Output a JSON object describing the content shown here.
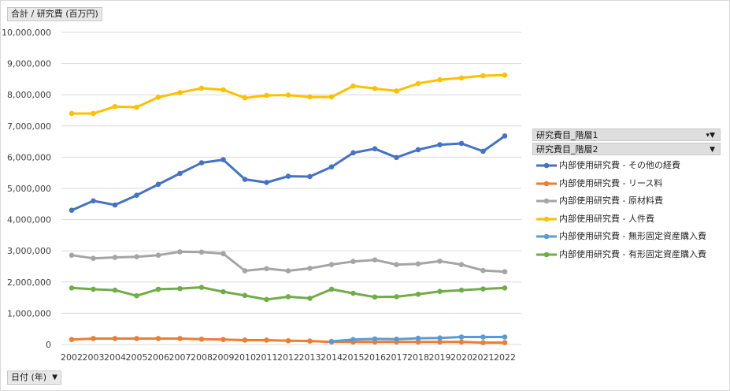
{
  "pivot": {
    "value_field": "合計 / 研究費 (百万円)",
    "axis_field": "日付 (年)",
    "legend_field_1": "研究費目_階層1",
    "legend_field_2": "研究費目_階層2"
  },
  "chart_data": {
    "type": "line",
    "title": "",
    "ylabel": "合計 / 研究費 (百万円)",
    "xlabel": "日付 (年)",
    "ylim": [
      0,
      10000000
    ],
    "yticks": [
      0,
      1000000,
      2000000,
      3000000,
      4000000,
      5000000,
      6000000,
      7000000,
      8000000,
      9000000,
      10000000
    ],
    "ytick_labels": [
      "0",
      "1,000,000",
      "2,000,000",
      "3,000,000",
      "4,000,000",
      "5,000,000",
      "6,000,000",
      "7,000,000",
      "8,000,000",
      "9,000,000",
      "10,000,000"
    ],
    "grid": true,
    "legend_position": "right",
    "categories": [
      "2002",
      "2003",
      "2004",
      "2005",
      "2006",
      "2007",
      "2008",
      "2009",
      "2010",
      "2011",
      "2012",
      "2013",
      "2014",
      "2015",
      "2016",
      "2017",
      "2018",
      "2019",
      "2020",
      "2021",
      "2022"
    ],
    "series": [
      {
        "name": "内部使用研究費 - その他の経費",
        "color": "#4472c4",
        "values": [
          4300000,
          4600000,
          4470000,
          4780000,
          5130000,
          5480000,
          5820000,
          5920000,
          5290000,
          5190000,
          5390000,
          5380000,
          5690000,
          6140000,
          6270000,
          5990000,
          6240000,
          6400000,
          6440000,
          6190000,
          6680000
        ]
      },
      {
        "name": "内部使用研究費 - リース料",
        "color": "#ed7d31",
        "values": [
          160000,
          190000,
          190000,
          190000,
          190000,
          190000,
          170000,
          160000,
          140000,
          140000,
          120000,
          110000,
          80000,
          80000,
          80000,
          80000,
          80000,
          80000,
          80000,
          60000,
          60000
        ]
      },
      {
        "name": "内部使用研究費 - 原材料費",
        "color": "#a5a5a5",
        "values": [
          2860000,
          2760000,
          2790000,
          2810000,
          2860000,
          2970000,
          2960000,
          2910000,
          2360000,
          2430000,
          2360000,
          2440000,
          2560000,
          2660000,
          2710000,
          2560000,
          2580000,
          2670000,
          2560000,
          2370000,
          2330000
        ]
      },
      {
        "name": "内部使用研究費 - 人件費",
        "color": "#ffc000",
        "values": [
          7400000,
          7400000,
          7620000,
          7600000,
          7920000,
          8070000,
          8210000,
          8160000,
          7900000,
          7980000,
          7990000,
          7930000,
          7930000,
          8280000,
          8200000,
          8120000,
          8360000,
          8480000,
          8540000,
          8610000,
          8630000
        ]
      },
      {
        "name": "内部使用研究費 - 無形固定資産購入費",
        "color": "#5b9bd5",
        "values": [
          null,
          null,
          null,
          null,
          null,
          null,
          null,
          null,
          null,
          null,
          null,
          null,
          100000,
          160000,
          180000,
          170000,
          200000,
          210000,
          240000,
          240000,
          240000
        ]
      },
      {
        "name": "内部使用研究費 - 有形固定資産購入費",
        "color": "#70ad47",
        "values": [
          1810000,
          1770000,
          1740000,
          1560000,
          1770000,
          1790000,
          1830000,
          1690000,
          1570000,
          1440000,
          1530000,
          1480000,
          1770000,
          1640000,
          1520000,
          1530000,
          1610000,
          1700000,
          1740000,
          1780000,
          1810000
        ]
      }
    ]
  }
}
